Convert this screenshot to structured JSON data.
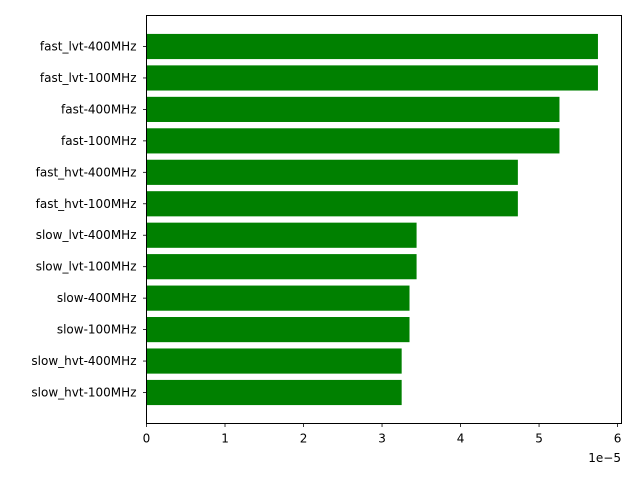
{
  "chart_data": {
    "type": "bar",
    "orientation": "horizontal",
    "categories": [
      "fast_lvt-400MHz",
      "fast_lvt-100MHz",
      "fast-400MHz",
      "fast-100MHz",
      "fast_hvt-400MHz",
      "fast_hvt-100MHz",
      "slow_lvt-400MHz",
      "slow_lvt-100MHz",
      "slow-400MHz",
      "slow-100MHz",
      "slow_hvt-400MHz",
      "slow_hvt-100MHz"
    ],
    "values": [
      5.75e-05,
      5.75e-05,
      5.26e-05,
      5.26e-05,
      4.73e-05,
      4.73e-05,
      3.44e-05,
      3.44e-05,
      3.35e-05,
      3.35e-05,
      3.25e-05,
      3.25e-05
    ],
    "xlim": [
      0,
      6.05e-05
    ],
    "xticks": [
      0,
      1e-05,
      2e-05,
      3e-05,
      4e-05,
      5e-05,
      6e-05
    ],
    "xtick_labels": [
      "0",
      "1",
      "2",
      "3",
      "4",
      "5",
      "6"
    ],
    "x_offset_label": "1e−5",
    "bar_color": "#008000",
    "grid": false,
    "title": "",
    "xlabel": "",
    "ylabel": ""
  }
}
